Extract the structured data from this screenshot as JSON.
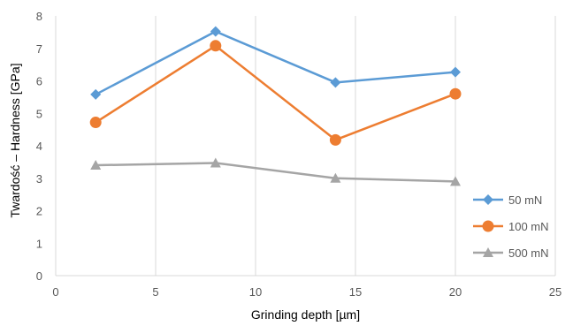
{
  "chart_data": {
    "type": "line",
    "title": "",
    "xlabel": "Grinding depth [µm]",
    "ylabel": "Twardość – Hardness [GPa]",
    "xlim": [
      0,
      25
    ],
    "ylim": [
      0,
      8
    ],
    "xticks": [
      0,
      5,
      10,
      15,
      20,
      25
    ],
    "yticks": [
      0,
      1,
      2,
      3,
      4,
      5,
      6,
      7,
      8
    ],
    "grid": "vertical",
    "legend_position": "right",
    "x": [
      2,
      8,
      14,
      20
    ],
    "series": [
      {
        "name": "50 mN",
        "values": [
          5.58,
          7.52,
          5.95,
          6.27
        ],
        "color": "#5B9BD5",
        "marker": "diamond"
      },
      {
        "name": "100 mN",
        "values": [
          4.72,
          7.08,
          4.18,
          5.6
        ],
        "color": "#ED7D31",
        "marker": "circle"
      },
      {
        "name": "500 mN",
        "values": [
          3.4,
          3.47,
          3.0,
          2.9
        ],
        "color": "#A5A5A5",
        "marker": "triangle"
      }
    ]
  }
}
